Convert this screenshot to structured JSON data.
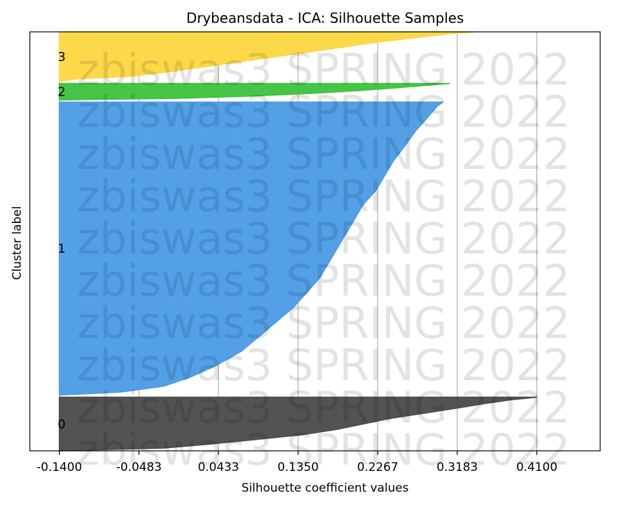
{
  "chart_data": {
    "type": "area",
    "title": "Drybeansdata - ICA: Silhouette Samples",
    "xlabel": "Silhouette coefficient values",
    "ylabel": "Cluster label",
    "xlim": [
      -0.174,
      0.483
    ],
    "x_ticks": [
      "-0.1400",
      "-0.0483",
      "0.0433",
      "0.1350",
      "0.2267",
      "0.3183",
      "0.4100"
    ],
    "x_tick_values": [
      -0.14,
      -0.0483,
      0.0433,
      0.135,
      0.2267,
      0.3183,
      0.41
    ],
    "vertical_gridlines": true,
    "baseline_x": -0.14,
    "watermark": "zbiswas3 SPRING 2022",
    "clusters": [
      {
        "label": "0",
        "color": "#4a4a4a",
        "size_fraction": 0.13,
        "profile": [
          [
            0.0,
            -0.14
          ],
          [
            0.05,
            -0.02
          ],
          [
            0.12,
            0.03
          ],
          [
            0.2,
            0.08
          ],
          [
            0.3,
            0.14
          ],
          [
            0.4,
            0.18
          ],
          [
            0.5,
            0.21
          ],
          [
            0.6,
            0.24
          ],
          [
            0.7,
            0.28
          ],
          [
            0.8,
            0.32
          ],
          [
            0.88,
            0.35
          ],
          [
            0.95,
            0.38
          ],
          [
            1.0,
            0.41
          ]
        ]
      },
      {
        "label": "1",
        "color": "#4a9be6",
        "size_fraction": 0.71,
        "profile": [
          [
            0.0,
            -0.14
          ],
          [
            0.01,
            -0.07
          ],
          [
            0.03,
            -0.02
          ],
          [
            0.06,
            0.01
          ],
          [
            0.1,
            0.04
          ],
          [
            0.15,
            0.07
          ],
          [
            0.2,
            0.09
          ],
          [
            0.25,
            0.11
          ],
          [
            0.3,
            0.13
          ],
          [
            0.35,
            0.145
          ],
          [
            0.4,
            0.16
          ],
          [
            0.45,
            0.17
          ],
          [
            0.5,
            0.18
          ],
          [
            0.55,
            0.19
          ],
          [
            0.6,
            0.2
          ],
          [
            0.65,
            0.21
          ],
          [
            0.7,
            0.225
          ],
          [
            0.75,
            0.235
          ],
          [
            0.8,
            0.245
          ],
          [
            0.85,
            0.258
          ],
          [
            0.9,
            0.27
          ],
          [
            0.95,
            0.285
          ],
          [
            0.985,
            0.295
          ],
          [
            1.0,
            0.302
          ]
        ]
      },
      {
        "label": "2",
        "color": "#3cc23c",
        "size_fraction": 0.04,
        "profile": [
          [
            0.0,
            -0.14
          ],
          [
            0.1,
            0.0
          ],
          [
            0.25,
            0.09
          ],
          [
            0.4,
            0.15
          ],
          [
            0.55,
            0.2
          ],
          [
            0.7,
            0.24
          ],
          [
            0.85,
            0.275
          ],
          [
            1.0,
            0.31
          ]
        ]
      },
      {
        "label": "3",
        "color": "#fdd740",
        "size_fraction": 0.12,
        "profile": [
          [
            0.0,
            -0.14
          ],
          [
            0.05,
            -0.12
          ],
          [
            0.1,
            -0.06
          ],
          [
            0.2,
            -0.01
          ],
          [
            0.3,
            0.03
          ],
          [
            0.4,
            0.07
          ],
          [
            0.5,
            0.11
          ],
          [
            0.6,
            0.15
          ],
          [
            0.7,
            0.19
          ],
          [
            0.8,
            0.23
          ],
          [
            0.9,
            0.28
          ],
          [
            0.96,
            0.31
          ],
          [
            1.0,
            0.34
          ]
        ]
      }
    ]
  }
}
